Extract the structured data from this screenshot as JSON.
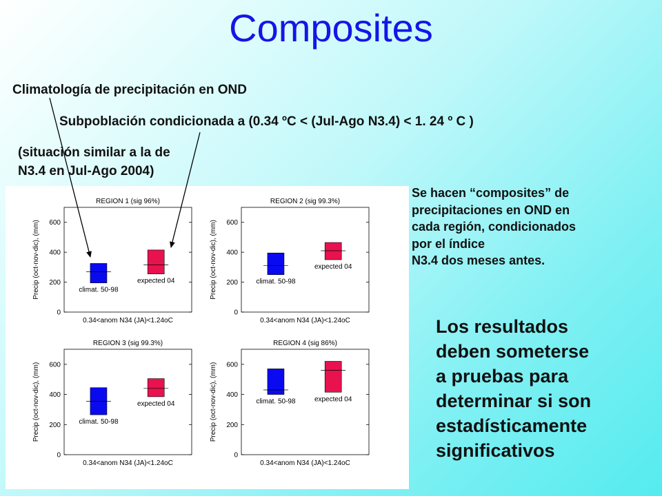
{
  "slide": {
    "title": "Composites",
    "clim_label": "Climatología de precipitación en OND",
    "subpop_label": "Subpoblación condicionada a (0.34 ºC < (Jul-Ago N3.4)  <  1. 24  º C )",
    "situacion_lines": [
      "(situación similar a la de",
      "N3.4 en Jul-Ago 2004)"
    ],
    "side_note_lines": [
      "Se hacen “composites” de",
      "precipitaciones en OND en",
      "cada región,  condicionados",
      "por el índice",
      "N3.4 dos meses antes."
    ],
    "results_lines": [
      "Los resultados",
      "deben someterse",
      "a pruebas para",
      "determinar si son",
      "estadísticamente",
      "significativos"
    ]
  },
  "colors": {
    "title": "#1515e6",
    "climat_box": "#0a0af0",
    "expected_box": "#e8124f"
  },
  "chart_data": [
    {
      "type": "box",
      "title": "REGION 1 (sig 96%)",
      "xlabel": "0.34<anom N34 (JA)<1.24oC",
      "ylabel": "Precip (oct-nov-dic), (mm)",
      "ylim": [
        0,
        700
      ],
      "yticks": [
        0,
        200,
        400,
        600
      ],
      "series": [
        {
          "name": "climat. 50-98",
          "q_low": 195,
          "median": 270,
          "q_high": 325,
          "color": "#0a0af0"
        },
        {
          "name": "expected 04",
          "q_low": 255,
          "median": 315,
          "q_high": 415,
          "color": "#e8124f"
        }
      ]
    },
    {
      "type": "box",
      "title": "REGION 2 (sig 99.3%)",
      "xlabel": "0.34<anom N34 (JA)<1.24oC",
      "ylabel": "Precip (oct-nov-dic), (mm)",
      "ylim": [
        0,
        700
      ],
      "yticks": [
        0,
        200,
        400,
        600
      ],
      "series": [
        {
          "name": "climat. 50-98",
          "q_low": 250,
          "median": 310,
          "q_high": 395,
          "color": "#0a0af0"
        },
        {
          "name": "expected 04",
          "q_low": 350,
          "median": 410,
          "q_high": 465,
          "color": "#e8124f"
        }
      ]
    },
    {
      "type": "box",
      "title": "REGION 3 (sig 99.3%)",
      "xlabel": "0.34<anom N34 (JA)<1.24oC",
      "ylabel": "Precip (oct-nov-dic), (mm)",
      "ylim": [
        0,
        700
      ],
      "yticks": [
        0,
        200,
        400,
        600
      ],
      "series": [
        {
          "name": "climat. 50-98",
          "q_low": 265,
          "median": 355,
          "q_high": 445,
          "color": "#0a0af0"
        },
        {
          "name": "expected 04",
          "q_low": 385,
          "median": 440,
          "q_high": 505,
          "color": "#e8124f"
        }
      ]
    },
    {
      "type": "box",
      "title": "REGION 4 (sig 86%)",
      "xlabel": "0.34<anom N34 (JA)<1.24oC",
      "ylabel": "Precip (oct-nov-dic), (mm)",
      "ylim": [
        0,
        700
      ],
      "yticks": [
        0,
        200,
        400,
        600
      ],
      "series": [
        {
          "name": "climat. 50-98",
          "q_low": 400,
          "median": 430,
          "q_high": 570,
          "color": "#0a0af0"
        },
        {
          "name": "expected 04",
          "q_low": 415,
          "median": 560,
          "q_high": 620,
          "color": "#e8124f"
        }
      ]
    }
  ]
}
